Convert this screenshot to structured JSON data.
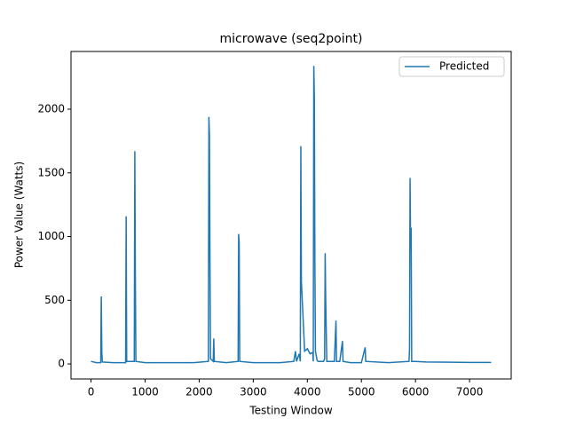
{
  "chart_data": {
    "type": "line",
    "title": "microwave (seq2point)",
    "x_label": "Testing Window",
    "y_label": "Power Value (Watts)",
    "x": [
      0,
      100,
      180,
      190,
      200,
      210,
      400,
      640,
      650,
      660,
      800,
      810,
      820,
      830,
      1000,
      1200,
      1900,
      2170,
      2180,
      2190,
      2200,
      2210,
      2260,
      2270,
      2280,
      2500,
      2720,
      2730,
      2740,
      2750,
      3000,
      3500,
      3750,
      3780,
      3800,
      3850,
      3870,
      3880,
      3890,
      3950,
      4000,
      4050,
      4100,
      4110,
      4120,
      4130,
      4140,
      4150,
      4180,
      4200,
      4300,
      4320,
      4330,
      4340,
      4360,
      4500,
      4530,
      4540,
      4600,
      4650,
      4660,
      4800,
      5000,
      5070,
      5080,
      5500,
      5880,
      5890,
      5900,
      5910,
      5920,
      5930,
      6000,
      6200,
      7000,
      7400
    ],
    "series": [
      {
        "name": "Predicted",
        "color": "#1f77b4",
        "values": [
          20,
          10,
          10,
          530,
          90,
          15,
          10,
          10,
          1160,
          20,
          20,
          1670,
          700,
          20,
          10,
          10,
          10,
          20,
          1940,
          1800,
          770,
          40,
          20,
          200,
          20,
          10,
          20,
          1020,
          950,
          20,
          10,
          10,
          20,
          100,
          20,
          80,
          20,
          1710,
          650,
          100,
          120,
          80,
          90,
          20,
          2340,
          2100,
          800,
          100,
          30,
          20,
          20,
          40,
          870,
          500,
          20,
          20,
          340,
          20,
          20,
          180,
          20,
          10,
          10,
          130,
          20,
          10,
          20,
          120,
          1460,
          900,
          1070,
          20,
          20,
          15,
          12,
          12
        ]
      }
    ],
    "xlim": [
      -370,
      7770
    ],
    "ylim": [
      -118,
      2453
    ],
    "xticks": [
      0,
      1000,
      2000,
      3000,
      4000,
      5000,
      6000,
      7000
    ],
    "yticks": [
      0,
      500,
      1000,
      1500,
      2000
    ],
    "legend": "upper right"
  }
}
